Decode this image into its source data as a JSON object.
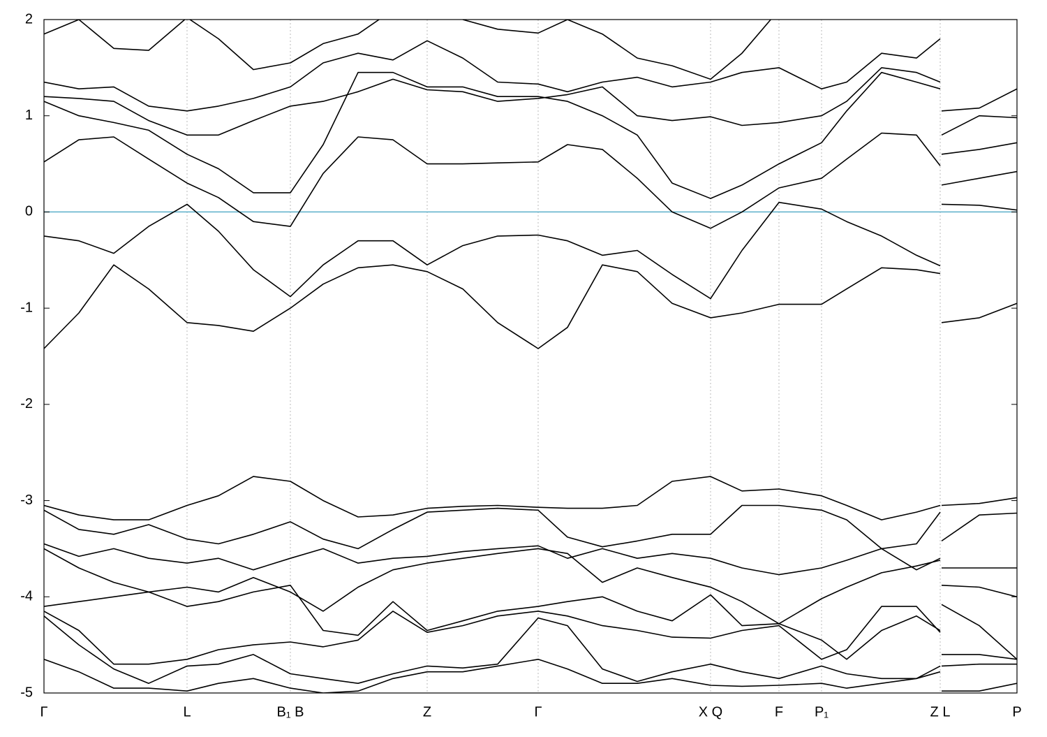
{
  "chart_data": {
    "type": "line",
    "color": "#000000",
    "xlim": [
      0,
      13.94
    ],
    "ylim": [
      -5,
      2
    ],
    "yticks": [
      -5,
      -4,
      -3,
      -2,
      -1,
      0,
      1,
      2
    ],
    "xticks": [
      {
        "value": 0,
        "label": "Γ"
      },
      {
        "value": 2.05,
        "label": "L"
      },
      {
        "value": 3.53,
        "label": "B₁ B"
      },
      {
        "value": 5.49,
        "label": "Z"
      },
      {
        "value": 7.08,
        "label": "Γ"
      },
      {
        "value": 9.55,
        "label": "X Q"
      },
      {
        "value": 10.53,
        "label": "F"
      },
      {
        "value": 11.14,
        "label": "P₁"
      },
      {
        "value": 12.84,
        "label": "Z L"
      },
      {
        "value": 13.94,
        "label": "P"
      }
    ],
    "grid": true,
    "fermi_level": {
      "value": 0,
      "color": "#5aafca"
    },
    "x": [
      0,
      0.5,
      1.0,
      1.5,
      2.05,
      2.5,
      3.0,
      3.53,
      4.0,
      4.5,
      5.0,
      5.49,
      6.0,
      6.5,
      7.08,
      7.5,
      8.0,
      8.5,
      9.0,
      9.55,
      10.0,
      10.53,
      11.14,
      11.5,
      12.0,
      12.5,
      12.84,
      12.85,
      12.86,
      13.4,
      13.94
    ],
    "series": [
      {
        "values": [
          -1.42,
          -1.05,
          -0.55,
          -0.8,
          -1.15,
          -1.18,
          -1.24,
          -1.0,
          -0.75,
          -0.58,
          -0.55,
          -0.62,
          -0.8,
          -1.15,
          -1.42,
          -1.2,
          -0.55,
          -0.62,
          -0.95,
          -1.1,
          -1.05,
          -0.96,
          -0.96,
          -0.8,
          -0.58,
          -0.6,
          -0.64,
          null,
          -1.15,
          -1.1,
          -0.95
        ]
      },
      {
        "values": [
          -0.25,
          -0.3,
          -0.43,
          -0.15,
          0.08,
          -0.2,
          -0.6,
          -0.88,
          -0.55,
          -0.3,
          -0.3,
          -0.55,
          -0.35,
          -0.25,
          -0.24,
          -0.3,
          -0.45,
          -0.4,
          -0.65,
          -0.9,
          -0.4,
          0.1,
          0.03,
          -0.1,
          -0.25,
          -0.45,
          -0.56,
          null,
          0.08,
          0.07,
          0.02
        ]
      },
      {
        "values": [
          0.52,
          0.75,
          0.78,
          0.55,
          0.3,
          0.15,
          -0.1,
          -0.15,
          0.4,
          0.78,
          0.75,
          0.5,
          0.5,
          0.51,
          0.52,
          0.7,
          0.65,
          0.35,
          0.0,
          -0.17,
          0.0,
          0.25,
          0.35,
          0.55,
          0.82,
          0.8,
          0.48,
          null,
          0.28,
          0.35,
          0.42
        ]
      },
      {
        "values": [
          1.15,
          1.0,
          0.93,
          0.85,
          0.6,
          0.45,
          0.2,
          0.2,
          0.7,
          1.45,
          1.45,
          1.3,
          1.3,
          1.2,
          1.2,
          1.15,
          1.0,
          0.8,
          0.3,
          0.14,
          0.28,
          0.5,
          0.72,
          1.05,
          1.45,
          1.35,
          1.28,
          null,
          0.6,
          0.65,
          0.72
        ]
      },
      {
        "values": [
          1.2,
          1.18,
          1.15,
          0.95,
          0.8,
          0.8,
          0.95,
          1.1,
          1.15,
          1.25,
          1.38,
          1.27,
          1.25,
          1.15,
          1.18,
          1.22,
          1.3,
          1.0,
          0.95,
          0.99,
          0.9,
          0.93,
          1.0,
          1.15,
          1.5,
          1.45,
          1.35,
          null,
          0.8,
          1.0,
          0.98
        ]
      },
      {
        "values": [
          1.35,
          1.28,
          1.3,
          1.1,
          1.05,
          1.1,
          1.18,
          1.3,
          1.55,
          1.65,
          1.58,
          1.78,
          1.6,
          1.35,
          1.33,
          1.25,
          1.35,
          1.4,
          1.3,
          1.35,
          1.45,
          1.5,
          1.28,
          1.35,
          1.65,
          1.6,
          1.8,
          null,
          1.05,
          1.08,
          1.28
        ]
      },
      {
        "values": [
          1.85,
          2.0,
          1.7,
          1.68,
          2.02,
          1.8,
          1.48,
          1.55,
          1.75,
          1.85,
          2.1,
          null,
          2.0,
          1.9,
          1.86,
          2.0,
          1.85,
          1.6,
          1.52,
          1.38,
          1.65,
          2.1,
          null,
          null,
          null,
          null,
          null,
          null,
          null,
          null,
          null
        ]
      },
      {
        "values": [
          -3.05,
          -3.15,
          -3.2,
          -3.2,
          -3.05,
          -2.95,
          -2.75,
          -2.8,
          -3.0,
          -3.17,
          -3.15,
          -3.08,
          -3.06,
          -3.05,
          -3.07,
          -3.08,
          -3.08,
          -3.05,
          -2.8,
          -2.75,
          -2.9,
          -2.88,
          -2.95,
          -3.05,
          -3.2,
          -3.12,
          -3.05,
          null,
          -3.05,
          -3.03,
          -2.97
        ]
      },
      {
        "values": [
          -3.1,
          -3.3,
          -3.35,
          -3.25,
          -3.4,
          -3.45,
          -3.35,
          -3.22,
          -3.4,
          -3.5,
          -3.3,
          -3.12,
          -3.1,
          -3.08,
          -3.1,
          -3.38,
          -3.48,
          -3.42,
          -3.35,
          -3.35,
          -3.05,
          -3.05,
          -3.1,
          -3.2,
          -3.5,
          -3.45,
          -3.12,
          null,
          -3.42,
          -3.15,
          -3.13
        ]
      },
      {
        "values": [
          -3.45,
          -3.58,
          -3.5,
          -3.6,
          -3.65,
          -3.6,
          -3.72,
          -3.6,
          -3.5,
          -3.65,
          -3.6,
          -3.58,
          -3.53,
          -3.5,
          -3.47,
          -3.6,
          -3.5,
          -3.6,
          -3.55,
          -3.6,
          -3.7,
          -3.77,
          -3.7,
          -3.62,
          -3.5,
          -3.72,
          -3.6,
          null,
          -3.88,
          -3.9,
          -4.0
        ]
      },
      {
        "values": [
          -3.5,
          -3.7,
          -3.85,
          -3.95,
          -3.9,
          -3.95,
          -3.8,
          -3.95,
          -4.15,
          -3.9,
          -3.72,
          -3.65,
          -3.6,
          -3.55,
          -3.5,
          -3.55,
          -3.85,
          -3.7,
          -3.8,
          -3.9,
          -4.05,
          -4.28,
          -4.02,
          -3.9,
          -3.75,
          -3.68,
          -3.62,
          null,
          -3.7,
          -3.7,
          -3.7
        ]
      },
      {
        "values": [
          -4.1,
          -4.05,
          -4.0,
          -3.95,
          -4.1,
          -4.05,
          -3.95,
          -3.88,
          -4.35,
          -4.4,
          -4.05,
          -4.35,
          -4.25,
          -4.15,
          -4.1,
          -4.05,
          -4.0,
          -4.15,
          -4.25,
          -3.98,
          -4.3,
          -4.28,
          -4.45,
          -4.65,
          -4.35,
          -4.2,
          -4.35,
          null,
          -4.08,
          -4.3,
          -4.65
        ]
      },
      {
        "values": [
          -4.15,
          -4.35,
          -4.7,
          -4.7,
          -4.65,
          -4.55,
          -4.5,
          -4.47,
          -4.52,
          -4.45,
          -4.15,
          -4.37,
          -4.3,
          -4.2,
          -4.15,
          -4.2,
          -4.3,
          -4.35,
          -4.42,
          -4.43,
          -4.35,
          -4.3,
          -4.65,
          -4.55,
          -4.1,
          -4.1,
          -4.37,
          null,
          -4.72,
          -4.7,
          -4.7
        ]
      },
      {
        "values": [
          -4.2,
          -4.5,
          -4.75,
          -4.9,
          -4.72,
          -4.7,
          -4.6,
          -4.8,
          -4.85,
          -4.9,
          -4.8,
          -4.72,
          -4.74,
          -4.7,
          -4.22,
          -4.3,
          -4.75,
          -4.88,
          -4.78,
          -4.7,
          -4.78,
          -4.85,
          -4.72,
          -4.8,
          -4.85,
          -4.85,
          -4.78,
          null,
          -4.6,
          -4.6,
          -4.65
        ]
      },
      {
        "values": [
          -4.65,
          -4.78,
          -4.95,
          -4.95,
          -4.98,
          -4.9,
          -4.85,
          -4.95,
          -5.0,
          -4.98,
          -4.85,
          -4.78,
          -4.78,
          -4.72,
          -4.65,
          -4.75,
          -4.9,
          -4.9,
          -4.85,
          -4.92,
          -4.93,
          -4.92,
          -4.9,
          -4.95,
          -4.9,
          -4.85,
          -4.72,
          null,
          -4.98,
          -4.98,
          -4.9
        ]
      }
    ]
  }
}
